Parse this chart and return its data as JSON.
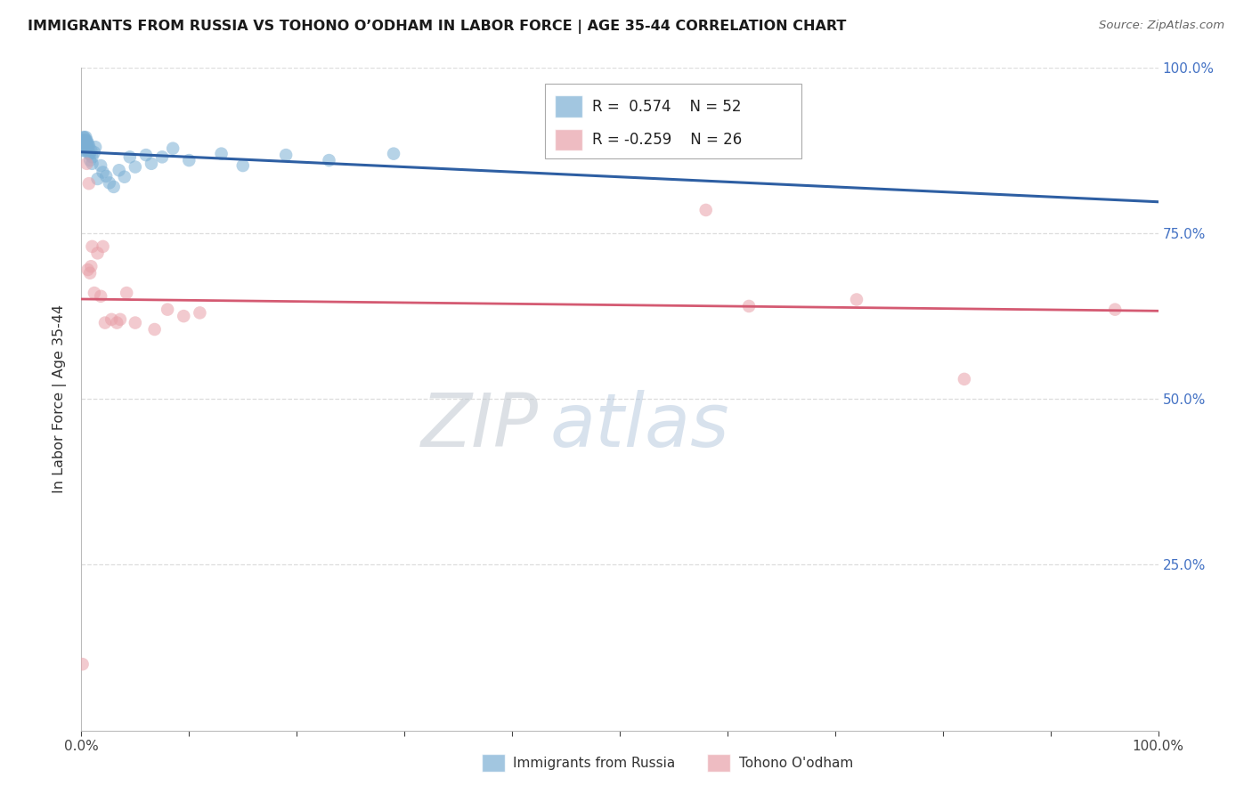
{
  "title": "IMMIGRANTS FROM RUSSIA VS TOHONO O’ODHAM IN LABOR FORCE | AGE 35-44 CORRELATION CHART",
  "source": "Source: ZipAtlas.com",
  "ylabel": "In Labor Force | Age 35-44",
  "watermark": "ZIPatlas",
  "blue_color": "#7bafd4",
  "pink_color": "#e8a0a8",
  "blue_line_color": "#2e5fa3",
  "pink_line_color": "#d45a72",
  "blue_scatter_alpha": 0.55,
  "pink_scatter_alpha": 0.55,
  "scatter_size": 110,
  "blue_x": [
    0.001,
    0.001,
    0.001,
    0.001,
    0.002,
    0.002,
    0.002,
    0.002,
    0.002,
    0.003,
    0.003,
    0.003,
    0.003,
    0.003,
    0.004,
    0.004,
    0.004,
    0.004,
    0.005,
    0.005,
    0.005,
    0.006,
    0.006,
    0.007,
    0.007,
    0.008,
    0.008,
    0.009,
    0.01,
    0.01,
    0.012,
    0.013,
    0.015,
    0.018,
    0.02,
    0.023,
    0.026,
    0.03,
    0.035,
    0.04,
    0.045,
    0.05,
    0.06,
    0.065,
    0.075,
    0.085,
    0.1,
    0.13,
    0.15,
    0.19,
    0.23,
    0.29
  ],
  "blue_y": [
    0.875,
    0.88,
    0.885,
    0.89,
    0.875,
    0.88,
    0.885,
    0.89,
    0.895,
    0.878,
    0.882,
    0.886,
    0.89,
    0.894,
    0.88,
    0.884,
    0.89,
    0.895,
    0.882,
    0.886,
    0.89,
    0.88,
    0.886,
    0.87,
    0.882,
    0.86,
    0.87,
    0.875,
    0.855,
    0.865,
    0.872,
    0.88,
    0.832,
    0.852,
    0.842,
    0.836,
    0.826,
    0.82,
    0.845,
    0.835,
    0.865,
    0.85,
    0.868,
    0.855,
    0.865,
    0.878,
    0.86,
    0.87,
    0.852,
    0.868,
    0.86,
    0.87
  ],
  "pink_x": [
    0.001,
    0.005,
    0.006,
    0.007,
    0.008,
    0.009,
    0.01,
    0.012,
    0.015,
    0.018,
    0.02,
    0.022,
    0.028,
    0.033,
    0.036,
    0.042,
    0.05,
    0.068,
    0.08,
    0.095,
    0.11,
    0.58,
    0.62,
    0.72,
    0.82,
    0.96
  ],
  "pink_y": [
    0.1,
    0.855,
    0.695,
    0.825,
    0.69,
    0.7,
    0.73,
    0.66,
    0.72,
    0.655,
    0.73,
    0.615,
    0.62,
    0.615,
    0.62,
    0.66,
    0.615,
    0.605,
    0.635,
    0.625,
    0.63,
    0.785,
    0.64,
    0.65,
    0.53,
    0.635
  ],
  "xlim": [
    0.0,
    1.0
  ],
  "ylim": [
    0.0,
    1.0
  ],
  "grid_color": "#dddddd",
  "ytick_right_color": "#4472c4",
  "ytick_right_labels": [
    "",
    "25.0%",
    "50.0%",
    "75.0%",
    "100.0%"
  ],
  "ytick_positions": [
    0.0,
    0.25,
    0.5,
    0.75,
    1.0
  ],
  "xtick_positions": [
    0.0,
    0.1,
    0.2,
    0.3,
    0.4,
    0.5,
    0.6,
    0.7,
    0.8,
    0.9,
    1.0
  ],
  "legend_r1_text": "R =  0.574",
  "legend_n1_text": "N = 52",
  "legend_r2_text": "R = -0.259",
  "legend_n2_text": "N = 26",
  "bottom_label_blue": "Immigrants from Russia",
  "bottom_label_pink": "Tohono O'odham"
}
